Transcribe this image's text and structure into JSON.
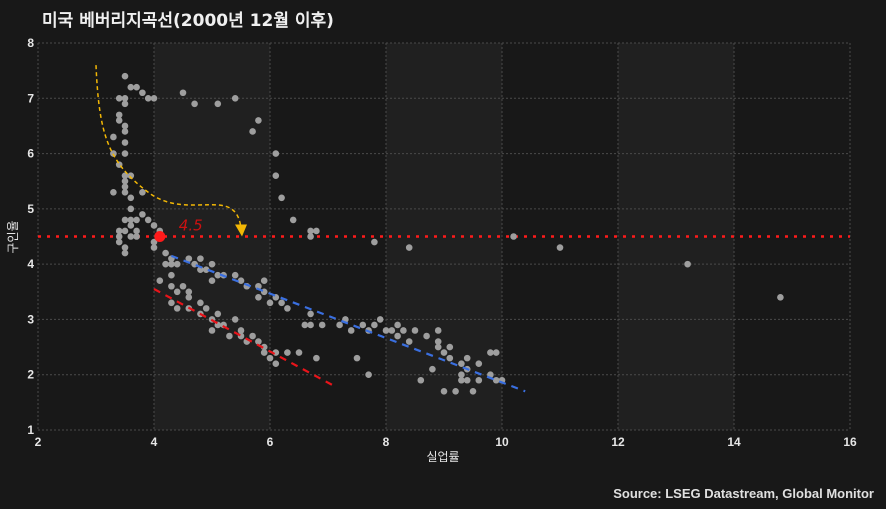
{
  "title": "미국 베버리지곡선(2000년 12월 이후)",
  "source": "Source: LSEG Datastream, Global Monitor",
  "colors": {
    "background": "#181818",
    "band_light": "#202020",
    "grid": "#4a4a4a",
    "points": "#9e9e9e",
    "reference_line": "#ff1a1a",
    "highlight_point": "#ff1a1a",
    "fit_red": "#e8141a",
    "fit_blue": "#3a6fe0",
    "arrow": "#f2b705"
  },
  "chart_data": {
    "type": "scatter",
    "title": "미국 베버리지곡선(2000년 12월 이후)",
    "xlabel": "실업률",
    "ylabel": "구인율",
    "xlim": [
      2,
      16
    ],
    "ylim": [
      1,
      8
    ],
    "xticks": [
      2,
      4,
      6,
      8,
      10,
      12,
      14,
      16
    ],
    "yticks": [
      1,
      2,
      3,
      4,
      5,
      6,
      7,
      8
    ],
    "grid": true,
    "shaded_bands_x": [
      [
        4,
        6
      ],
      [
        8,
        10
      ],
      [
        12,
        14
      ]
    ],
    "reference_line": {
      "orientation": "horizontal",
      "y": 4.5,
      "style": "dotted",
      "color": "#ff1a1a"
    },
    "highlight_point": {
      "x": 4.1,
      "y": 4.5,
      "label": "4.5"
    },
    "fit_lines": [
      {
        "name": "lower-fit",
        "color": "#e8141a",
        "x": [
          4.0,
          7.1
        ],
        "y": [
          3.55,
          1.8
        ]
      },
      {
        "name": "upper-fit",
        "color": "#3a6fe0",
        "x": [
          4.3,
          10.4
        ],
        "y": [
          4.15,
          1.7
        ]
      }
    ],
    "annotation_arrow": {
      "from": [
        3.0,
        7.6
      ],
      "via": [
        3.9,
        5.3
      ],
      "to": [
        5.5,
        4.5
      ],
      "color": "#f2b705",
      "style": "dashed"
    },
    "points": [
      [
        3.5,
        7.4
      ],
      [
        3.6,
        7.2
      ],
      [
        3.7,
        7.2
      ],
      [
        3.8,
        7.1
      ],
      [
        3.4,
        7.0
      ],
      [
        3.5,
        7.0
      ],
      [
        3.9,
        7.0
      ],
      [
        4.0,
        7.0
      ],
      [
        4.5,
        7.1
      ],
      [
        4.7,
        6.9
      ],
      [
        5.1,
        6.9
      ],
      [
        5.4,
        7.0
      ],
      [
        3.5,
        6.9
      ],
      [
        3.4,
        6.7
      ],
      [
        3.4,
        6.6
      ],
      [
        3.5,
        6.5
      ],
      [
        3.5,
        6.4
      ],
      [
        3.3,
        6.3
      ],
      [
        3.5,
        6.2
      ],
      [
        3.3,
        6.0
      ],
      [
        3.5,
        6.0
      ],
      [
        3.4,
        5.8
      ],
      [
        3.5,
        5.6
      ],
      [
        3.6,
        5.6
      ],
      [
        3.5,
        5.5
      ],
      [
        3.3,
        5.3
      ],
      [
        3.5,
        5.4
      ],
      [
        3.5,
        5.3
      ],
      [
        3.6,
        5.2
      ],
      [
        3.8,
        5.3
      ],
      [
        3.6,
        5.0
      ],
      [
        3.5,
        4.8
      ],
      [
        3.6,
        4.8
      ],
      [
        3.7,
        4.8
      ],
      [
        3.8,
        4.9
      ],
      [
        3.9,
        4.8
      ],
      [
        4.0,
        4.7
      ],
      [
        4.1,
        4.6
      ],
      [
        3.4,
        4.6
      ],
      [
        3.5,
        4.6
      ],
      [
        3.6,
        4.7
      ],
      [
        3.7,
        4.6
      ],
      [
        3.4,
        4.5
      ],
      [
        3.6,
        4.5
      ],
      [
        3.7,
        4.5
      ],
      [
        3.4,
        4.4
      ],
      [
        3.5,
        4.3
      ],
      [
        3.5,
        4.2
      ],
      [
        4.0,
        4.4
      ],
      [
        4.0,
        4.3
      ],
      [
        5.8,
        6.6
      ],
      [
        5.7,
        6.4
      ],
      [
        6.1,
        6.0
      ],
      [
        6.1,
        5.6
      ],
      [
        6.2,
        5.2
      ],
      [
        6.4,
        4.8
      ],
      [
        6.7,
        4.6
      ],
      [
        6.8,
        4.6
      ],
      [
        6.7,
        4.5
      ],
      [
        7.8,
        4.4
      ],
      [
        8.4,
        4.3
      ],
      [
        10.2,
        4.5
      ],
      [
        11.0,
        4.3
      ],
      [
        13.2,
        4.0
      ],
      [
        14.8,
        3.4
      ],
      [
        4.2,
        4.2
      ],
      [
        4.3,
        4.1
      ],
      [
        4.2,
        4.0
      ],
      [
        4.3,
        4.0
      ],
      [
        4.4,
        4.0
      ],
      [
        4.6,
        4.1
      ],
      [
        4.8,
        4.1
      ],
      [
        4.7,
        4.0
      ],
      [
        4.8,
        3.9
      ],
      [
        5.0,
        4.0
      ],
      [
        4.9,
        3.9
      ],
      [
        5.1,
        3.8
      ],
      [
        5.0,
        3.7
      ],
      [
        5.2,
        3.8
      ],
      [
        5.4,
        3.8
      ],
      [
        5.5,
        3.7
      ],
      [
        5.6,
        3.6
      ],
      [
        5.8,
        3.6
      ],
      [
        5.9,
        3.5
      ],
      [
        5.8,
        3.4
      ],
      [
        6.1,
        3.4
      ],
      [
        6.0,
        3.3
      ],
      [
        6.2,
        3.3
      ],
      [
        6.3,
        3.2
      ],
      [
        5.9,
        3.7
      ],
      [
        4.1,
        3.7
      ],
      [
        4.3,
        3.8
      ],
      [
        4.3,
        3.6
      ],
      [
        4.4,
        3.5
      ],
      [
        4.5,
        3.6
      ],
      [
        4.6,
        3.5
      ],
      [
        4.6,
        3.4
      ],
      [
        4.3,
        3.3
      ],
      [
        4.4,
        3.2
      ],
      [
        4.6,
        3.2
      ],
      [
        4.8,
        3.3
      ],
      [
        4.8,
        3.1
      ],
      [
        4.9,
        3.2
      ],
      [
        5.0,
        3.0
      ],
      [
        5.1,
        3.1
      ],
      [
        5.1,
        2.9
      ],
      [
        5.2,
        2.9
      ],
      [
        5.4,
        3.0
      ],
      [
        5.5,
        2.8
      ],
      [
        5.5,
        2.7
      ],
      [
        5.6,
        2.6
      ],
      [
        5.7,
        2.7
      ],
      [
        5.8,
        2.6
      ],
      [
        5.9,
        2.5
      ],
      [
        5.9,
        2.4
      ],
      [
        6.0,
        2.3
      ],
      [
        6.1,
        2.4
      ],
      [
        6.1,
        2.2
      ],
      [
        6.3,
        2.4
      ],
      [
        6.5,
        2.4
      ],
      [
        6.8,
        2.3
      ],
      [
        5.0,
        2.8
      ],
      [
        5.3,
        2.7
      ],
      [
        6.6,
        2.9
      ],
      [
        6.7,
        2.9
      ],
      [
        6.9,
        2.9
      ],
      [
        6.7,
        3.1
      ],
      [
        7.3,
        3.0
      ],
      [
        7.2,
        2.9
      ],
      [
        7.4,
        2.8
      ],
      [
        7.6,
        2.9
      ],
      [
        7.7,
        2.8
      ],
      [
        7.8,
        2.9
      ],
      [
        7.9,
        3.0
      ],
      [
        8.0,
        2.8
      ],
      [
        8.1,
        2.8
      ],
      [
        8.2,
        2.9
      ],
      [
        8.2,
        2.7
      ],
      [
        8.3,
        2.8
      ],
      [
        8.5,
        2.8
      ],
      [
        8.4,
        2.6
      ],
      [
        8.7,
        2.7
      ],
      [
        8.9,
        2.8
      ],
      [
        8.9,
        2.6
      ],
      [
        9.0,
        2.4
      ],
      [
        8.9,
        2.5
      ],
      [
        9.1,
        2.5
      ],
      [
        9.1,
        2.3
      ],
      [
        9.3,
        2.2
      ],
      [
        9.4,
        2.3
      ],
      [
        9.4,
        2.1
      ],
      [
        9.6,
        2.2
      ],
      [
        9.8,
        2.4
      ],
      [
        9.9,
        2.4
      ],
      [
        9.8,
        2.0
      ],
      [
        9.9,
        1.9
      ],
      [
        10.0,
        1.9
      ],
      [
        9.3,
        2.0
      ],
      [
        9.4,
        1.9
      ],
      [
        9.6,
        1.9
      ],
      [
        9.5,
        1.7
      ],
      [
        9.3,
        1.9
      ],
      [
        9.2,
        1.7
      ],
      [
        8.8,
        2.1
      ],
      [
        8.6,
        1.9
      ],
      [
        9.0,
        1.7
      ],
      [
        7.5,
        2.3
      ],
      [
        7.7,
        2.0
      ]
    ]
  }
}
